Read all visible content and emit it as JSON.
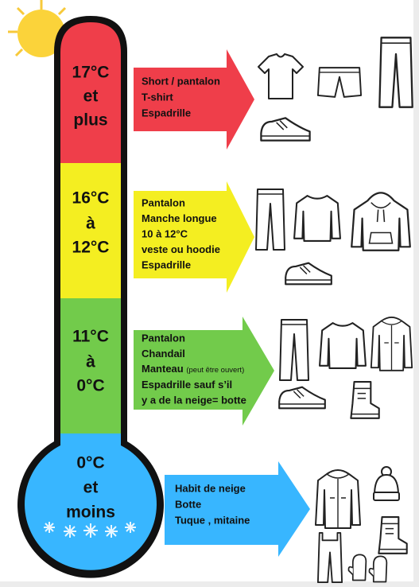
{
  "bands": [
    {
      "temp": [
        "17°C",
        "et",
        "plus"
      ],
      "items": [
        "Short / pantalon",
        "T-shirt",
        "Espadrille"
      ]
    },
    {
      "temp": [
        "16°C",
        "à",
        "12°C"
      ],
      "items": [
        "Pantalon",
        "Manche longue",
        "10 à 12°C",
        "veste ou hoodie",
        "Espadrille"
      ]
    },
    {
      "temp": [
        "11°C",
        "à",
        "0°C"
      ],
      "items": [
        "Pantalon",
        "Chandail",
        {
          "text": "Manteau",
          "note": "(peut être ouvert)"
        },
        "Espadrille sauf s’il",
        "y a de la neige= botte"
      ]
    },
    {
      "temp": [
        "0°C",
        "et",
        "moins"
      ],
      "items": [
        "Habit de neige",
        "Botte",
        "Tuque , mitaine"
      ]
    }
  ]
}
